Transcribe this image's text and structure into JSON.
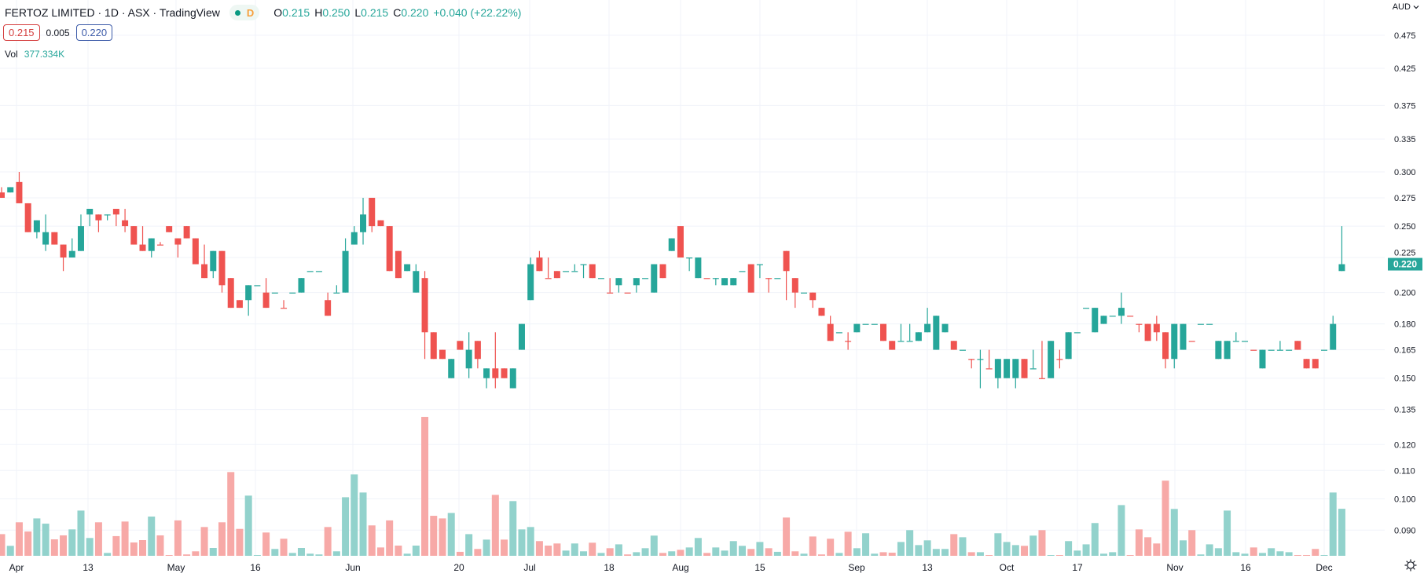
{
  "header": {
    "title": "FERTOZ LIMITED · 1D · ASX · TradingView",
    "interval_badge": "D",
    "ohlc": {
      "o_label": "O",
      "o": "0.215",
      "h_label": "H",
      "h": "0.250",
      "l_label": "L",
      "l": "0.215",
      "c_label": "C",
      "c": "0.220",
      "change": "+0.040 (+22.22%)"
    },
    "bid": "0.215",
    "spread": "0.005",
    "ask": "0.220",
    "vol_label": "Vol",
    "vol_value": "377.334K"
  },
  "axis": {
    "currency": "AUD"
  },
  "colors": {
    "up": "#26a69a",
    "down": "#ef5350",
    "up_volume": "#92d2cc",
    "down_volume": "#f7a9a7",
    "last_price_tag": "#26a69a",
    "grid": "#f0f3fa"
  },
  "icons": {
    "settings": "gear-icon",
    "currency_menu": "chevron-down-icon",
    "market_status": "dot-icon"
  },
  "chart_data": {
    "type": "candlestick",
    "title": "FERTOZ LIMITED · 1D · ASX",
    "y_scale": "log",
    "ylim": [
      0.085,
      0.49
    ],
    "grid": true,
    "last_price": "0.220",
    "y_ticks": [
      "0.475",
      "0.425",
      "0.375",
      "0.335",
      "0.300",
      "0.275",
      "0.250",
      "0.225",
      "0.200",
      "0.180",
      "0.165",
      "0.150",
      "0.135",
      "0.120",
      "0.110",
      "0.100",
      "0.090"
    ],
    "x_ticks": [
      "Apr",
      "13",
      "May",
      "16",
      "Jun",
      "20",
      "Jul",
      "18",
      "Aug",
      "15",
      "Sep",
      "13",
      "Oct",
      "17",
      "Nov",
      "16",
      "Dec"
    ],
    "ohlc": [
      [
        0.28,
        0.285,
        0.275,
        0.275
      ],
      [
        0.28,
        0.285,
        0.28,
        0.285
      ],
      [
        0.29,
        0.3,
        0.27,
        0.27
      ],
      [
        0.27,
        0.27,
        0.245,
        0.245
      ],
      [
        0.245,
        0.255,
        0.24,
        0.255
      ],
      [
        0.235,
        0.26,
        0.23,
        0.245
      ],
      [
        0.245,
        0.245,
        0.235,
        0.235
      ],
      [
        0.235,
        0.235,
        0.215,
        0.225
      ],
      [
        0.225,
        0.24,
        0.225,
        0.23
      ],
      [
        0.23,
        0.26,
        0.23,
        0.25
      ],
      [
        0.26,
        0.265,
        0.25,
        0.265
      ],
      [
        0.26,
        0.26,
        0.245,
        0.255
      ],
      [
        0.26,
        0.26,
        0.255,
        0.26
      ],
      [
        0.265,
        0.265,
        0.25,
        0.26
      ],
      [
        0.255,
        0.265,
        0.245,
        0.25
      ],
      [
        0.25,
        0.25,
        0.235,
        0.235
      ],
      [
        0.235,
        0.25,
        0.23,
        0.23
      ],
      [
        0.23,
        0.24,
        0.225,
        0.24
      ],
      [
        0.235,
        0.237,
        0.235,
        0.235
      ],
      [
        0.25,
        0.25,
        0.245,
        0.245
      ],
      [
        0.24,
        0.24,
        0.225,
        0.235
      ],
      [
        0.25,
        0.25,
        0.24,
        0.24
      ],
      [
        0.24,
        0.24,
        0.22,
        0.22
      ],
      [
        0.22,
        0.235,
        0.21,
        0.21
      ],
      [
        0.215,
        0.23,
        0.21,
        0.23
      ],
      [
        0.23,
        0.23,
        0.2,
        0.205
      ],
      [
        0.21,
        0.21,
        0.19,
        0.19
      ],
      [
        0.195,
        0.195,
        0.19,
        0.19
      ],
      [
        0.195,
        0.205,
        0.185,
        0.205
      ],
      [
        0.205,
        0.205,
        0.205,
        0.205
      ],
      [
        0.2,
        0.21,
        0.19,
        0.19
      ],
      [
        0.2,
        0.2,
        0.2,
        0.2
      ],
      [
        0.19,
        0.195,
        0.19,
        0.19
      ],
      [
        0.2,
        0.2,
        0.2,
        0.2
      ],
      [
        0.2,
        0.21,
        0.2,
        0.21
      ],
      [
        0.215,
        0.215,
        0.215,
        0.215
      ],
      [
        0.215,
        0.215,
        0.215,
        0.215
      ],
      [
        0.195,
        0.2,
        0.185,
        0.185
      ],
      [
        0.2,
        0.205,
        0.2,
        0.2
      ],
      [
        0.2,
        0.24,
        0.2,
        0.23
      ],
      [
        0.235,
        0.25,
        0.235,
        0.245
      ],
      [
        0.245,
        0.275,
        0.235,
        0.26
      ],
      [
        0.275,
        0.275,
        0.245,
        0.25
      ],
      [
        0.255,
        0.255,
        0.25,
        0.25
      ],
      [
        0.25,
        0.25,
        0.215,
        0.215
      ],
      [
        0.23,
        0.23,
        0.21,
        0.21
      ],
      [
        0.215,
        0.22,
        0.215,
        0.22
      ],
      [
        0.2,
        0.22,
        0.2,
        0.215
      ],
      [
        0.21,
        0.215,
        0.16,
        0.175
      ],
      [
        0.175,
        0.175,
        0.16,
        0.16
      ],
      [
        0.165,
        0.165,
        0.16,
        0.16
      ],
      [
        0.15,
        0.16,
        0.15,
        0.16
      ],
      [
        0.17,
        0.17,
        0.165,
        0.165
      ],
      [
        0.155,
        0.175,
        0.15,
        0.165
      ],
      [
        0.17,
        0.17,
        0.155,
        0.16
      ],
      [
        0.15,
        0.155,
        0.145,
        0.155
      ],
      [
        0.155,
        0.175,
        0.145,
        0.15
      ],
      [
        0.155,
        0.155,
        0.15,
        0.15
      ],
      [
        0.145,
        0.155,
        0.145,
        0.155
      ],
      [
        0.165,
        0.18,
        0.165,
        0.18
      ],
      [
        0.195,
        0.225,
        0.195,
        0.22
      ],
      [
        0.225,
        0.23,
        0.215,
        0.215
      ],
      [
        0.21,
        0.225,
        0.21,
        0.21
      ],
      [
        0.215,
        0.215,
        0.21,
        0.21
      ],
      [
        0.215,
        0.215,
        0.215,
        0.215
      ],
      [
        0.215,
        0.22,
        0.215,
        0.215
      ],
      [
        0.22,
        0.22,
        0.21,
        0.22
      ],
      [
        0.22,
        0.22,
        0.21,
        0.21
      ],
      [
        0.21,
        0.21,
        0.21,
        0.21
      ],
      [
        0.2,
        0.21,
        0.2,
        0.2
      ],
      [
        0.205,
        0.21,
        0.2,
        0.21
      ],
      [
        0.2,
        0.2,
        0.2,
        0.2
      ],
      [
        0.205,
        0.21,
        0.2,
        0.21
      ],
      [
        0.21,
        0.21,
        0.21,
        0.21
      ],
      [
        0.2,
        0.22,
        0.2,
        0.22
      ],
      [
        0.22,
        0.22,
        0.21,
        0.21
      ],
      [
        0.23,
        0.24,
        0.23,
        0.24
      ],
      [
        0.25,
        0.25,
        0.225,
        0.225
      ],
      [
        0.225,
        0.225,
        0.215,
        0.225
      ],
      [
        0.21,
        0.225,
        0.21,
        0.225
      ],
      [
        0.21,
        0.21,
        0.21,
        0.21
      ],
      [
        0.21,
        0.21,
        0.205,
        0.21
      ],
      [
        0.205,
        0.21,
        0.205,
        0.21
      ],
      [
        0.205,
        0.21,
        0.205,
        0.21
      ],
      [
        0.215,
        0.215,
        0.215,
        0.215
      ],
      [
        0.22,
        0.22,
        0.2,
        0.2
      ],
      [
        0.22,
        0.22,
        0.21,
        0.22
      ],
      [
        0.21,
        0.21,
        0.2,
        0.21
      ],
      [
        0.21,
        0.21,
        0.21,
        0.21
      ],
      [
        0.23,
        0.23,
        0.195,
        0.215
      ],
      [
        0.21,
        0.21,
        0.19,
        0.2
      ],
      [
        0.2,
        0.2,
        0.2,
        0.2
      ],
      [
        0.2,
        0.2,
        0.19,
        0.195
      ],
      [
        0.19,
        0.19,
        0.185,
        0.185
      ],
      [
        0.18,
        0.185,
        0.17,
        0.17
      ],
      [
        0.175,
        0.175,
        0.175,
        0.175
      ],
      [
        0.17,
        0.175,
        0.165,
        0.17
      ],
      [
        0.175,
        0.18,
        0.175,
        0.18
      ],
      [
        0.18,
        0.18,
        0.18,
        0.18
      ],
      [
        0.18,
        0.18,
        0.18,
        0.18
      ],
      [
        0.18,
        0.18,
        0.17,
        0.17
      ],
      [
        0.17,
        0.17,
        0.165,
        0.165
      ],
      [
        0.17,
        0.18,
        0.17,
        0.17
      ],
      [
        0.17,
        0.18,
        0.17,
        0.17
      ],
      [
        0.17,
        0.175,
        0.17,
        0.175
      ],
      [
        0.175,
        0.19,
        0.175,
        0.18
      ],
      [
        0.165,
        0.185,
        0.165,
        0.185
      ],
      [
        0.175,
        0.18,
        0.175,
        0.18
      ],
      [
        0.17,
        0.17,
        0.165,
        0.165
      ],
      [
        0.165,
        0.165,
        0.165,
        0.165
      ],
      [
        0.16,
        0.16,
        0.155,
        0.16
      ],
      [
        0.16,
        0.165,
        0.145,
        0.16
      ],
      [
        0.155,
        0.165,
        0.155,
        0.155
      ],
      [
        0.15,
        0.16,
        0.145,
        0.16
      ],
      [
        0.15,
        0.16,
        0.15,
        0.16
      ],
      [
        0.15,
        0.16,
        0.145,
        0.16
      ],
      [
        0.16,
        0.16,
        0.15,
        0.15
      ],
      [
        0.155,
        0.165,
        0.155,
        0.155
      ],
      [
        0.15,
        0.17,
        0.15,
        0.15
      ],
      [
        0.15,
        0.17,
        0.15,
        0.17
      ],
      [
        0.16,
        0.165,
        0.155,
        0.16
      ],
      [
        0.16,
        0.175,
        0.16,
        0.175
      ],
      [
        0.175,
        0.175,
        0.175,
        0.175
      ],
      [
        0.19,
        0.19,
        0.19,
        0.19
      ],
      [
        0.175,
        0.19,
        0.175,
        0.19
      ],
      [
        0.18,
        0.185,
        0.18,
        0.185
      ],
      [
        0.185,
        0.185,
        0.185,
        0.185
      ],
      [
        0.185,
        0.2,
        0.18,
        0.19
      ],
      [
        0.185,
        0.185,
        0.185,
        0.185
      ],
      [
        0.18,
        0.18,
        0.175,
        0.18
      ],
      [
        0.18,
        0.18,
        0.17,
        0.17
      ],
      [
        0.18,
        0.185,
        0.17,
        0.175
      ],
      [
        0.175,
        0.175,
        0.155,
        0.16
      ],
      [
        0.16,
        0.18,
        0.155,
        0.18
      ],
      [
        0.165,
        0.18,
        0.165,
        0.18
      ],
      [
        0.17,
        0.17,
        0.17,
        0.17
      ],
      [
        0.18,
        0.18,
        0.18,
        0.18
      ],
      [
        0.18,
        0.18,
        0.18,
        0.18
      ],
      [
        0.16,
        0.17,
        0.16,
        0.17
      ],
      [
        0.16,
        0.17,
        0.16,
        0.17
      ],
      [
        0.17,
        0.175,
        0.17,
        0.17
      ],
      [
        0.17,
        0.17,
        0.17,
        0.17
      ],
      [
        0.165,
        0.165,
        0.165,
        0.165
      ],
      [
        0.155,
        0.165,
        0.155,
        0.165
      ],
      [
        0.165,
        0.165,
        0.165,
        0.165
      ],
      [
        0.165,
        0.17,
        0.165,
        0.165
      ],
      [
        0.165,
        0.165,
        0.165,
        0.165
      ],
      [
        0.17,
        0.17,
        0.165,
        0.165
      ],
      [
        0.16,
        0.16,
        0.155,
        0.155
      ],
      [
        0.16,
        0.16,
        0.155,
        0.155
      ],
      [
        0.165,
        0.165,
        0.165,
        0.165
      ],
      [
        0.165,
        0.185,
        0.165,
        0.18
      ],
      [
        0.215,
        0.25,
        0.215,
        0.22
      ]
    ],
    "volume_k": [
      174,
      80,
      269,
      195,
      300,
      258,
      132,
      164,
      212,
      363,
      143,
      269,
      23,
      158,
      275,
      107,
      126,
      315,
      164,
      6,
      284,
      11,
      36,
      231,
      63,
      269,
      672,
      216,
      483,
      4,
      187,
      55,
      137,
      23,
      63,
      17,
      11,
      231,
      36,
      470,
      653,
      508,
      244,
      67,
      284,
      82,
      17,
      82,
      1115,
      321,
      300,
      344,
      32,
      174,
      55,
      130,
      489,
      130,
      439,
      212,
      231,
      118,
      82,
      99,
      42,
      99,
      36,
      105,
      23,
      61,
      92,
      11,
      29,
      61,
      162,
      23,
      36,
      48,
      67,
      143,
      23,
      67,
      42,
      118,
      80,
      55,
      111,
      61,
      32,
      307,
      36,
      17,
      155,
      11,
      137,
      23,
      193,
      61,
      181,
      17,
      29,
      25,
      111,
      206,
      86,
      124,
      55,
      55,
      174,
      149,
      29,
      29,
      4,
      181,
      111,
      86,
      80,
      162,
      206,
      4,
      4,
      118,
      42,
      92,
      263,
      17,
      29,
      407,
      4,
      212,
      149,
      99,
      603,
      376,
      124,
      206,
      11,
      92,
      61,
      363,
      29,
      17,
      67,
      23,
      61,
      36,
      29,
      4,
      4,
      55,
      4,
      508,
      377.334
    ]
  }
}
